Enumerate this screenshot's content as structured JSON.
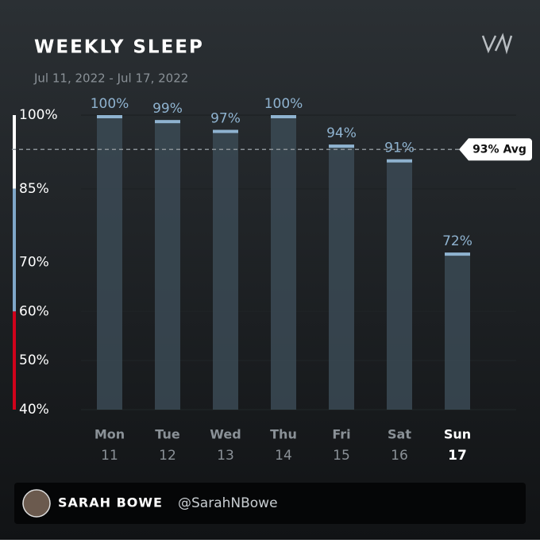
{
  "chart_data": {
    "type": "bar",
    "title": "WEEKLY SLEEP",
    "subtitle": "Jul 11, 2022 - Jul 17, 2022",
    "categories": [
      "Mon",
      "Tue",
      "Wed",
      "Thu",
      "Fri",
      "Sat",
      "Sun"
    ],
    "dates": [
      "11",
      "12",
      "13",
      "14",
      "15",
      "16",
      "17"
    ],
    "highlight_category": "Sun",
    "values": [
      100,
      99,
      97,
      100,
      94,
      91,
      72
    ],
    "value_labels": [
      "100%",
      "99%",
      "97%",
      "100%",
      "94%",
      "91%",
      "72%"
    ],
    "color": "#3b4a55",
    "cap_color": "#8fb3d0",
    "ylim": [
      40,
      100
    ],
    "yticks": [
      {
        "value": 40,
        "label": "40%"
      },
      {
        "value": 50,
        "label": "50%"
      },
      {
        "value": 60,
        "label": "60%"
      },
      {
        "value": 70,
        "label": "70%"
      },
      {
        "value": 85,
        "label": "85%"
      },
      {
        "value": 100,
        "label": "100%"
      }
    ],
    "bands": [
      {
        "from": 85,
        "to": 100,
        "color": "#ffffff"
      },
      {
        "from": 60,
        "to": 85,
        "color": "#7fa7c9"
      },
      {
        "from": 40,
        "to": 60,
        "color": "#d0021b"
      }
    ],
    "average": {
      "value": 93,
      "label": "93% Avg"
    },
    "grid": true
  },
  "footer": {
    "name": "SARAH BOWE",
    "handle": "@SarahNBowe"
  }
}
